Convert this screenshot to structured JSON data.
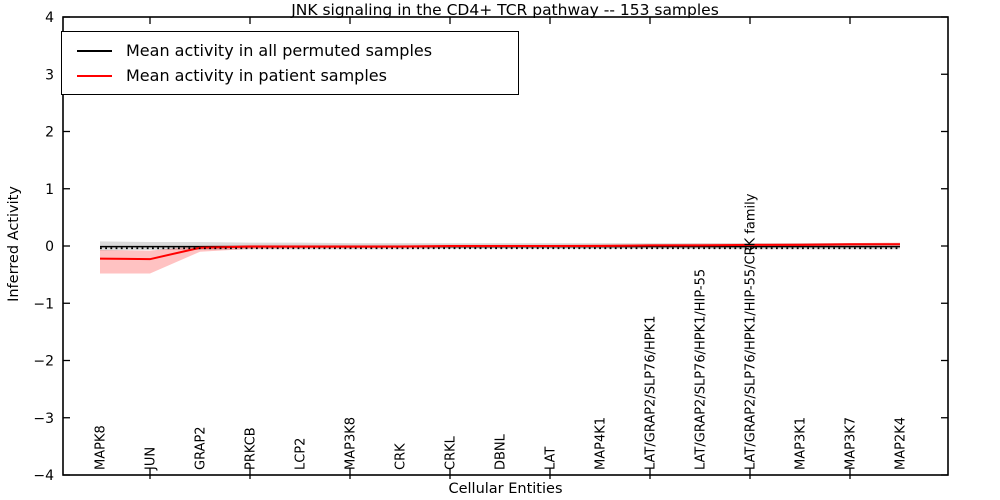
{
  "figure": {
    "title": "JNK signaling in the CD4+ TCR pathway -- 153 samples",
    "xlabel": "Cellular Entities",
    "ylabel": "Inferred Activity"
  },
  "legend": {
    "entries": [
      {
        "id": "permuted",
        "label": "Mean activity in all permuted samples",
        "color": "#000000"
      },
      {
        "id": "patient",
        "label": "Mean activity in patient samples",
        "color": "#ff0000"
      }
    ]
  },
  "chart_data": {
    "type": "line",
    "title": "JNK signaling in the CD4+ TCR pathway -- 153 samples",
    "xlabel": "Cellular Entities",
    "ylabel": "Inferred Activity",
    "ylim": [
      -4,
      4
    ],
    "grid": false,
    "legend_position": "upper left",
    "ytick_labels": [
      "−4",
      "−3",
      "−2",
      "−1",
      "0",
      "1",
      "2",
      "3",
      "4"
    ],
    "categories": [
      "MAPK8",
      "JUN",
      "GRAP2",
      "PRKCB",
      "LCP2",
      "MAP3K8",
      "CRK",
      "CRKL",
      "DBNL",
      "LAT",
      "MAP4K1",
      "LAT/GRAP2/SLP76/HPK1",
      "LAT/GRAP2/SLP76/HPK1/HIP-55",
      "LAT/GRAP2/SLP76/HPK1/HIP-55/CRK family",
      "MAP3K1",
      "MAP3K7",
      "MAP2K4"
    ],
    "series": [
      {
        "id": "permuted-mean",
        "name": "Mean activity in all permuted samples",
        "color": "#000000",
        "style": "solid",
        "values": [
          -0.01,
          -0.01,
          -0.01,
          -0.01,
          -0.01,
          -0.01,
          -0.01,
          -0.01,
          -0.01,
          -0.01,
          -0.01,
          -0.01,
          -0.01,
          -0.01,
          -0.01,
          -0.01,
          -0.01
        ]
      },
      {
        "id": "patient-mean",
        "name": "Mean activity in patient samples",
        "color": "#ff0000",
        "style": "solid",
        "values": [
          -0.22,
          -0.23,
          -0.03,
          -0.01,
          -0.01,
          -0.01,
          -0.01,
          0.0,
          0.0,
          0.0,
          0.0,
          0.01,
          0.01,
          0.02,
          0.02,
          0.03,
          0.03
        ]
      },
      {
        "id": "zero-baseline",
        "name": "zero reference (dotted)",
        "color": "#000000",
        "style": "dotted",
        "values": [
          -0.04,
          -0.04,
          -0.04,
          -0.04,
          -0.04,
          -0.04,
          -0.04,
          -0.04,
          -0.04,
          -0.04,
          -0.04,
          -0.04,
          -0.04,
          -0.04,
          -0.04,
          -0.04,
          -0.04
        ]
      }
    ],
    "bands": [
      {
        "name": "permuted-range",
        "color": "#00000024",
        "upper": [
          0.08,
          0.07,
          0.07,
          0.06,
          0.06,
          0.05,
          0.05,
          0.05,
          0.05,
          0.05,
          0.05,
          0.05,
          0.05,
          0.05,
          0.05,
          0.05,
          0.05
        ],
        "lower": [
          -0.08,
          -0.07,
          -0.07,
          -0.06,
          -0.06,
          -0.06,
          -0.06,
          -0.05,
          -0.05,
          -0.05,
          -0.05,
          -0.05,
          -0.05,
          -0.06,
          -0.06,
          -0.06,
          -0.06
        ]
      },
      {
        "name": "patient-range",
        "color": "#ff00003d",
        "upper": [
          -0.07,
          -0.08,
          0.0,
          0.02,
          0.02,
          0.02,
          0.02,
          0.02,
          0.02,
          0.02,
          0.03,
          0.03,
          0.04,
          0.04,
          0.05,
          0.05,
          0.06
        ],
        "lower": [
          -0.48,
          -0.48,
          -0.1,
          -0.05,
          -0.04,
          -0.04,
          -0.03,
          -0.03,
          -0.03,
          -0.02,
          -0.02,
          -0.01,
          -0.01,
          0.0,
          0.0,
          0.0,
          0.01
        ]
      }
    ]
  }
}
